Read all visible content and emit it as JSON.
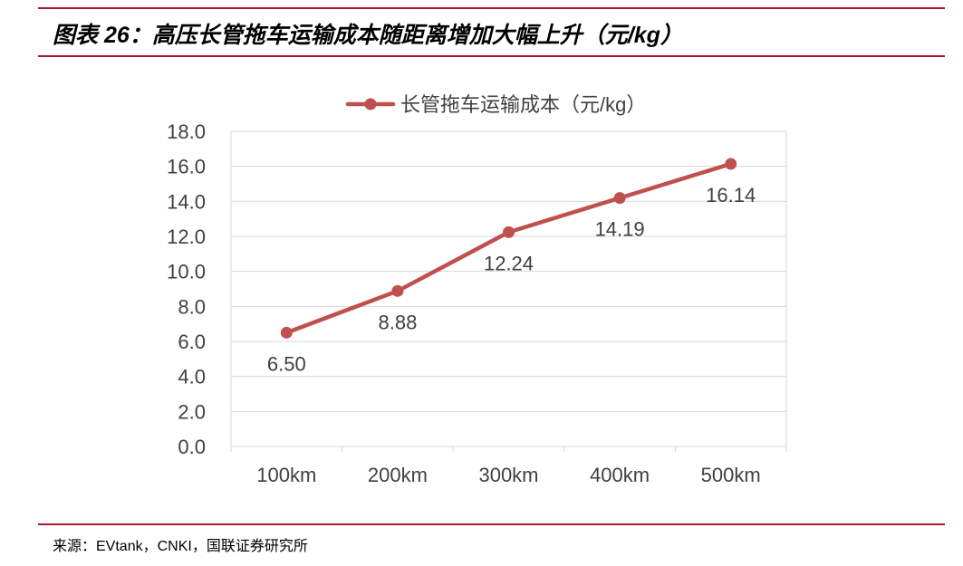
{
  "header": {
    "title": "图表 26：高压长管拖车运输成本随距离增加大幅上升（元/kg）"
  },
  "footer": {
    "source": "来源：EVtank，CNKI，国联证券研究所"
  },
  "colors": {
    "accent": "#a8182c",
    "series": "#c0504d",
    "grid": "#d9d9d9",
    "text": "#404040"
  },
  "chart_data": {
    "type": "line",
    "categories": [
      "100km",
      "200km",
      "300km",
      "400km",
      "500km"
    ],
    "series": [
      {
        "name": "长管拖车运输成本（元/kg）",
        "values": [
          6.5,
          8.88,
          12.24,
          14.19,
          16.14
        ]
      }
    ],
    "data_labels": [
      "6.50",
      "8.88",
      "12.24",
      "14.19",
      "16.14"
    ],
    "y_ticks": [
      "0.0",
      "2.0",
      "4.0",
      "6.0",
      "8.0",
      "10.0",
      "12.0",
      "14.0",
      "16.0",
      "18.0"
    ],
    "ylim": [
      0,
      18
    ],
    "grid": true,
    "legend_position": "top"
  }
}
